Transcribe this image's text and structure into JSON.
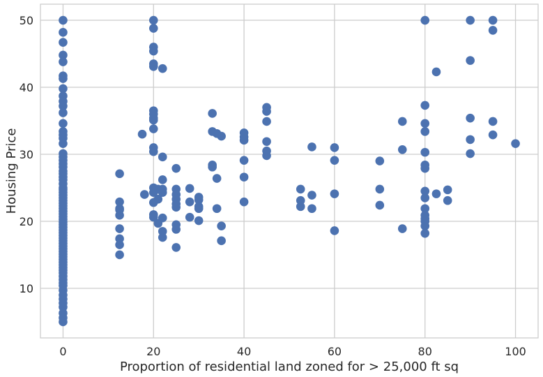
{
  "chart_data": {
    "type": "scatter",
    "title": "",
    "xlabel": "Proportion of residential land zoned for > 25,000 ft sq",
    "ylabel": "Housing Price",
    "xlim": [
      -5,
      105
    ],
    "ylim": [
      2.6,
      52.4
    ],
    "xticks": [
      0,
      20,
      40,
      60,
      80,
      100
    ],
    "yticks": [
      10,
      20,
      30,
      40,
      50
    ],
    "grid": true,
    "legend": "none",
    "colors": {
      "points": "#4C72B0",
      "grid": "#cccccc",
      "background": "#ffffff"
    },
    "series": [
      {
        "points": [
          [
            0,
            50
          ],
          [
            0,
            48.2
          ],
          [
            0,
            46.7
          ],
          [
            0,
            44.8
          ],
          [
            0,
            43.8
          ],
          [
            0,
            41.7
          ],
          [
            0,
            41.3
          ],
          [
            0,
            39.8
          ],
          [
            0,
            38.7
          ],
          [
            0,
            37.9
          ],
          [
            0,
            37.2
          ],
          [
            0,
            36.2
          ],
          [
            0,
            34.6
          ],
          [
            0,
            33.4
          ],
          [
            0,
            32.9
          ],
          [
            0,
            32.4
          ],
          [
            0,
            31.6
          ],
          [
            0,
            30.1
          ],
          [
            0,
            29.6
          ],
          [
            0,
            29.1
          ],
          [
            0,
            28.6
          ],
          [
            0,
            28.1
          ],
          [
            0,
            27.5
          ],
          [
            0,
            27.1
          ],
          [
            0,
            26.6
          ],
          [
            0,
            26.2
          ],
          [
            0,
            25.6
          ],
          [
            0,
            25.0
          ],
          [
            0,
            24.7
          ],
          [
            0,
            24.3
          ],
          [
            0,
            23.9
          ],
          [
            0,
            23.5
          ],
          [
            0,
            23.1
          ],
          [
            0,
            22.7
          ],
          [
            0,
            22.3
          ],
          [
            0,
            21.9
          ],
          [
            0,
            21.5
          ],
          [
            0,
            21.1
          ],
          [
            0,
            20.7
          ],
          [
            0,
            20.3
          ],
          [
            0,
            19.9
          ],
          [
            0,
            19.5
          ],
          [
            0,
            19.1
          ],
          [
            0,
            18.7
          ],
          [
            0,
            18.3
          ],
          [
            0,
            17.9
          ],
          [
            0,
            17.5
          ],
          [
            0,
            17.1
          ],
          [
            0,
            16.7
          ],
          [
            0,
            16.3
          ],
          [
            0,
            15.9
          ],
          [
            0,
            15.5
          ],
          [
            0,
            15.1
          ],
          [
            0,
            14.7
          ],
          [
            0,
            14.3
          ],
          [
            0,
            13.9
          ],
          [
            0,
            13.5
          ],
          [
            0,
            13.1
          ],
          [
            0,
            12.7
          ],
          [
            0,
            12.3
          ],
          [
            0,
            11.8
          ],
          [
            0,
            11.3
          ],
          [
            0,
            10.8
          ],
          [
            0,
            10.4
          ],
          [
            0,
            9.7
          ],
          [
            0,
            9.0
          ],
          [
            0,
            8.4
          ],
          [
            0,
            7.8
          ],
          [
            0,
            7.2
          ],
          [
            0,
            6.3
          ],
          [
            0,
            5.6
          ],
          [
            0,
            5.0
          ],
          [
            12.5,
            27.1
          ],
          [
            12.5,
            22.9
          ],
          [
            12.5,
            21.9
          ],
          [
            12.5,
            21.7
          ],
          [
            12.5,
            20.9
          ],
          [
            12.5,
            18.9
          ],
          [
            12.5,
            17.4
          ],
          [
            12.5,
            16.5
          ],
          [
            12.5,
            15.0
          ],
          [
            17.5,
            33.0
          ],
          [
            18,
            24.0
          ],
          [
            20,
            50
          ],
          [
            20,
            48.8
          ],
          [
            20,
            46.0
          ],
          [
            20,
            45.4
          ],
          [
            20,
            43.5
          ],
          [
            20,
            43.1
          ],
          [
            20,
            36.5
          ],
          [
            20,
            36.0
          ],
          [
            20,
            35.4
          ],
          [
            20,
            35.1
          ],
          [
            20,
            33.8
          ],
          [
            20,
            31.0
          ],
          [
            20,
            30.4
          ],
          [
            20,
            25.0
          ],
          [
            20,
            24.3
          ],
          [
            20,
            22.8
          ],
          [
            20,
            21.0
          ],
          [
            20,
            20.6
          ],
          [
            21,
            24.8
          ],
          [
            21,
            23.3
          ],
          [
            21,
            19.7
          ],
          [
            22,
            42.8
          ],
          [
            22,
            29.6
          ],
          [
            22,
            26.2
          ],
          [
            22,
            24.8
          ],
          [
            22,
            24.3
          ],
          [
            22,
            20.5
          ],
          [
            22,
            18.5
          ],
          [
            22,
            17.6
          ],
          [
            25,
            27.9
          ],
          [
            25,
            24.8
          ],
          [
            25,
            24.0
          ],
          [
            25,
            23.3
          ],
          [
            25,
            22.6
          ],
          [
            25,
            22.1
          ],
          [
            25,
            19.5
          ],
          [
            25,
            18.8
          ],
          [
            25,
            16.1
          ],
          [
            28,
            24.9
          ],
          [
            28,
            22.9
          ],
          [
            28,
            20.6
          ],
          [
            30,
            23.6
          ],
          [
            30,
            23.2
          ],
          [
            30,
            22.2
          ],
          [
            30,
            21.9
          ],
          [
            30,
            20.1
          ],
          [
            33,
            36.1
          ],
          [
            33,
            33.4
          ],
          [
            33,
            28.4
          ],
          [
            33,
            28.1
          ],
          [
            34,
            33.1
          ],
          [
            34,
            26.4
          ],
          [
            34,
            21.9
          ],
          [
            35,
            32.7
          ],
          [
            35,
            19.3
          ],
          [
            35,
            17.1
          ],
          [
            40,
            33.2
          ],
          [
            40,
            32.6
          ],
          [
            40,
            32.1
          ],
          [
            40,
            29.1
          ],
          [
            40,
            26.6
          ],
          [
            40,
            22.9
          ],
          [
            45,
            37.0
          ],
          [
            45,
            36.4
          ],
          [
            45,
            34.9
          ],
          [
            45,
            31.9
          ],
          [
            45,
            30.5
          ],
          [
            45,
            29.8
          ],
          [
            52.5,
            24.8
          ],
          [
            52.5,
            23.1
          ],
          [
            52.5,
            22.2
          ],
          [
            55,
            31.1
          ],
          [
            55,
            23.9
          ],
          [
            55,
            21.9
          ],
          [
            60,
            31.0
          ],
          [
            60,
            29.1
          ],
          [
            60,
            24.1
          ],
          [
            60,
            18.6
          ],
          [
            70,
            29.0
          ],
          [
            70,
            24.8
          ],
          [
            70,
            22.4
          ],
          [
            75,
            34.9
          ],
          [
            75,
            30.7
          ],
          [
            75,
            18.9
          ],
          [
            80,
            50
          ],
          [
            80,
            37.3
          ],
          [
            80,
            34.6
          ],
          [
            80,
            33.4
          ],
          [
            80,
            30.3
          ],
          [
            80,
            28.4
          ],
          [
            80,
            27.9
          ],
          [
            80,
            24.5
          ],
          [
            80,
            23.5
          ],
          [
            80,
            21.9
          ],
          [
            80,
            20.9
          ],
          [
            80,
            20.4
          ],
          [
            80,
            20.0
          ],
          [
            80,
            19.3
          ],
          [
            80,
            18.2
          ],
          [
            82.5,
            42.3
          ],
          [
            82.5,
            24.1
          ],
          [
            85,
            24.7
          ],
          [
            85,
            23.1
          ],
          [
            90,
            50
          ],
          [
            90,
            44.0
          ],
          [
            90,
            35.4
          ],
          [
            90,
            32.2
          ],
          [
            90,
            30.1
          ],
          [
            95,
            50
          ],
          [
            95,
            48.5
          ],
          [
            95,
            34.9
          ],
          [
            95,
            32.9
          ],
          [
            100,
            31.6
          ]
        ]
      }
    ]
  }
}
